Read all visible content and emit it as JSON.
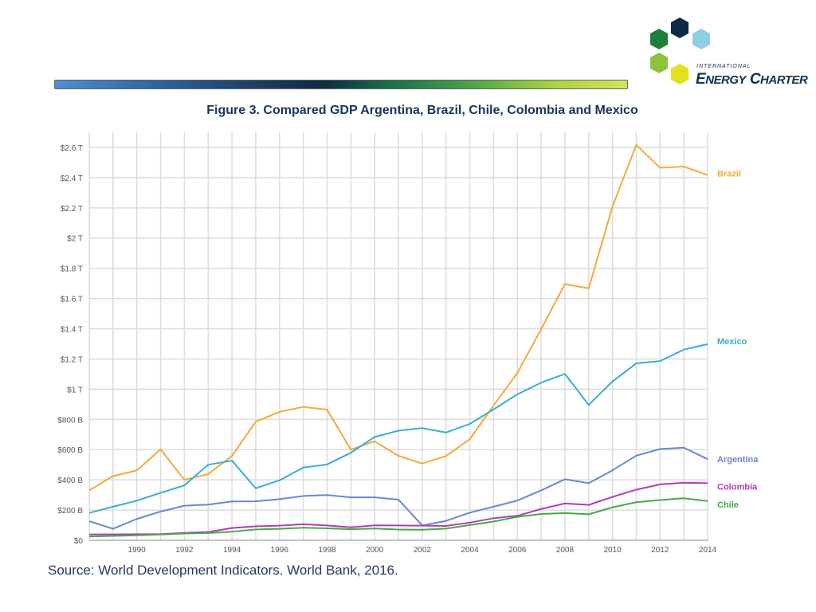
{
  "header": {
    "logo_small_text": "INTERNATIONAL",
    "logo_main_first": "E",
    "logo_main_rest": "NERGY",
    "logo_main_first2": "C",
    "logo_main_rest2": "HARTER"
  },
  "colors": {
    "brazil": "#f5a93a",
    "mexico": "#3aaed0",
    "argentina": "#6a86d4",
    "colombia": "#b43cb6",
    "chile": "#4aa84a",
    "grid": "#dcdcdc",
    "title": "#17365d"
  },
  "footer": {
    "source": "Source: World Development Indicators. World Bank, 2016."
  },
  "chart_data": {
    "type": "line",
    "title": "Figure 3. Compared GDP Argentina, Brazil, Chile, Colombia and Mexico",
    "xlabel": "",
    "ylabel": "",
    "x": [
      1988,
      1989,
      1990,
      1991,
      1992,
      1993,
      1994,
      1995,
      1996,
      1997,
      1998,
      1999,
      2000,
      2001,
      2002,
      2003,
      2004,
      2005,
      2006,
      2007,
      2008,
      2009,
      2010,
      2011,
      2012,
      2013,
      2014
    ],
    "xlim": [
      1988,
      2014
    ],
    "ylim": [
      0,
      2700
    ],
    "y_unit": "billions USD",
    "x_ticks": [
      1990,
      1992,
      1994,
      1996,
      1998,
      2000,
      2002,
      2004,
      2006,
      2008,
      2010,
      2012,
      2014
    ],
    "y_ticks": [
      0,
      200,
      400,
      600,
      800,
      1000,
      1200,
      1400,
      1600,
      1800,
      2000,
      2200,
      2400,
      2600
    ],
    "y_tick_labels": [
      "$0",
      "$200 B",
      "$400 B",
      "$600 B",
      "$800 B",
      "$1 T",
      "$1.2 T",
      "$1.4 T",
      "$1.6 T",
      "$1.8 T",
      "$2 T",
      "$2.2 T",
      "$2.4 T",
      "$2.6 T"
    ],
    "grid": true,
    "legend": "right-end labels",
    "series": [
      {
        "key": "brazil",
        "name": "Brazil",
        "values": [
          330,
          425,
          462,
          602,
          400,
          438,
          558,
          785,
          850,
          883,
          864,
          600,
          655,
          559,
          508,
          558,
          669,
          892,
          1107,
          1397,
          1696,
          1667,
          2209,
          2616,
          2465,
          2473,
          2417
        ]
      },
      {
        "key": "mexico",
        "name": "Mexico",
        "values": [
          181,
          222,
          262,
          314,
          363,
          500,
          527,
          344,
          397,
          481,
          502,
          579,
          684,
          725,
          742,
          713,
          770,
          866,
          966,
          1043,
          1101,
          896,
          1051,
          1171,
          1186,
          1262,
          1298
        ]
      },
      {
        "key": "argentina",
        "name": "Argentina",
        "values": [
          126,
          76,
          141,
          190,
          229,
          236,
          257,
          258,
          272,
          293,
          299,
          284,
          284,
          269,
          98,
          128,
          183,
          222,
          263,
          330,
          404,
          378,
          463,
          560,
          604,
          613,
          537
        ]
      },
      {
        "key": "colombia",
        "name": "Colombia",
        "values": [
          39,
          39,
          40,
          41,
          49,
          55,
          81,
          92,
          97,
          106,
          98,
          86,
          99,
          98,
          97,
          95,
          117,
          146,
          162,
          207,
          244,
          234,
          287,
          335,
          370,
          381,
          378
        ]
      },
      {
        "key": "chile",
        "name": "Chile",
        "values": [
          25,
          29,
          33,
          38,
          45,
          48,
          57,
          72,
          76,
          83,
          79,
          73,
          78,
          71,
          70,
          77,
          101,
          124,
          155,
          174,
          180,
          172,
          218,
          252,
          266,
          278,
          259
        ]
      }
    ]
  }
}
